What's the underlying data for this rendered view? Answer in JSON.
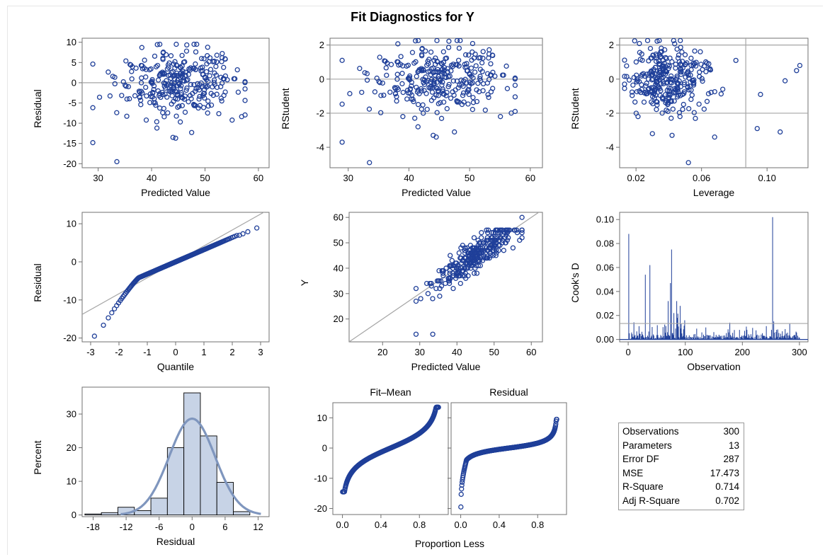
{
  "title": "Fit Diagnostics for Y",
  "colors": {
    "marker": "#1f3f99",
    "reference_line": "#a6a6a6",
    "histogram_fill": "#c7d3e6",
    "density_curve": "#7f96be",
    "axis": "#707070"
  },
  "stats_table": [
    {
      "label": "Observations",
      "value": "300"
    },
    {
      "label": "Parameters",
      "value": "13"
    },
    {
      "label": "Error DF",
      "value": "287"
    },
    {
      "label": "MSE",
      "value": "17.473"
    },
    {
      "label": "R-Square",
      "value": "0.714"
    },
    {
      "label": "Adj R-Square",
      "value": "0.702"
    }
  ],
  "chart_data": [
    {
      "id": "resid-vs-pred",
      "type": "scatter",
      "xlabel": "Predicted Value",
      "ylabel": "Residual",
      "xlim": [
        27,
        62
      ],
      "ylim": [
        -21,
        11
      ],
      "xticks": [
        30,
        40,
        50,
        60
      ],
      "yticks": [
        10,
        5,
        0,
        -5,
        -10,
        -15,
        -20
      ],
      "ref_lines": {
        "h": [
          0
        ]
      },
      "n_points": 300,
      "outliers": [
        [
          29,
          -14.8
        ],
        [
          33.5,
          -19.5
        ],
        [
          44,
          -13.5
        ],
        [
          44.5,
          -13.7
        ],
        [
          47.5,
          -12.3
        ],
        [
          41,
          -11.2
        ]
      ]
    },
    {
      "id": "rstudent-vs-pred",
      "type": "scatter",
      "xlabel": "Predicted Value",
      "ylabel": "RStudent",
      "xlim": [
        27,
        62
      ],
      "ylim": [
        -5.2,
        2.4
      ],
      "xticks": [
        30,
        40,
        50,
        60
      ],
      "yticks": [
        2,
        0,
        -2,
        -4
      ],
      "ref_lines": {
        "h": [
          2,
          0,
          -2
        ]
      },
      "n_points": 300,
      "outliers": [
        [
          29,
          -3.7
        ],
        [
          33.5,
          -4.9
        ],
        [
          44,
          -3.3
        ],
        [
          44.5,
          -3.4
        ],
        [
          47.5,
          -3.1
        ],
        [
          41.5,
          -2.8
        ]
      ]
    },
    {
      "id": "rstudent-vs-leverage",
      "type": "scatter",
      "xlabel": "Leverage",
      "ylabel": "RStudent",
      "xlim": [
        0.01,
        0.125
      ],
      "ylim": [
        -5.2,
        2.4
      ],
      "xticks": [
        0.02,
        0.06,
        0.1
      ],
      "xticklabels": [
        "0.02",
        "0.06",
        "0.10"
      ],
      "yticks": [
        2,
        0,
        -2,
        -4
      ],
      "ref_lines": {
        "h": [
          2,
          -2
        ],
        "v": [
          0.087
        ]
      },
      "n_points": 300,
      "outliers": [
        [
          0.052,
          -4.9
        ],
        [
          0.03,
          -3.2
        ],
        [
          0.042,
          -3.3
        ],
        [
          0.068,
          -3.4
        ],
        [
          0.094,
          -2.9
        ],
        [
          0.108,
          -3.1
        ],
        [
          0.12,
          0.8
        ],
        [
          0.118,
          0.5
        ],
        [
          0.111,
          -0.1
        ],
        [
          0.096,
          -0.9
        ]
      ]
    },
    {
      "id": "qq-plot",
      "type": "scatter",
      "xlabel": "Quantile",
      "ylabel": "Residual",
      "xlim": [
        -3.3,
        3.3
      ],
      "ylim": [
        -21,
        13
      ],
      "xticks": [
        -3,
        -2,
        -1,
        0,
        1,
        2,
        3
      ],
      "yticks": [
        10,
        0,
        -10,
        -20
      ],
      "ref_line": {
        "slope": 4.18,
        "intercept": 0
      },
      "n_points": 300
    },
    {
      "id": "y-vs-pred",
      "type": "scatter",
      "xlabel": "Predicted Value",
      "ylabel": "Y",
      "xlim": [
        11,
        63
      ],
      "ylim": [
        11,
        62
      ],
      "xticks": [
        20,
        30,
        40,
        50,
        60
      ],
      "yticks": [
        60,
        50,
        40,
        30,
        20
      ],
      "ref_line": {
        "slope": 1,
        "intercept": 0
      },
      "n_points": 300,
      "outliers": [
        [
          29,
          14
        ],
        [
          33.5,
          14
        ],
        [
          57.5,
          60
        ]
      ]
    },
    {
      "id": "cooks-d",
      "type": "needle",
      "xlabel": "Observation",
      "ylabel": "Cook's D",
      "xlim": [
        -15,
        315
      ],
      "ylim": [
        -0.002,
        0.106
      ],
      "xticks": [
        0,
        100,
        200,
        300
      ],
      "yticks": [
        0.1,
        0.08,
        0.06,
        0.04,
        0.02,
        0
      ],
      "yticklabels": [
        "0.10",
        "0.08",
        "0.06",
        "0.04",
        "0.02",
        "0.00"
      ],
      "ref_lines": {
        "h": [
          0.0133
        ]
      },
      "n_points": 300,
      "spikes": [
        [
          1,
          0.088
        ],
        [
          30,
          0.054
        ],
        [
          38,
          0.062
        ],
        [
          70,
          0.032
        ],
        [
          74,
          0.047
        ],
        [
          76,
          0.075
        ],
        [
          80,
          0.022
        ],
        [
          86,
          0.018
        ],
        [
          91,
          0.028
        ],
        [
          99,
          0.016
        ],
        [
          178,
          0.014
        ],
        [
          208,
          0.008
        ],
        [
          253,
          0.102
        ],
        [
          255,
          0.015
        ],
        [
          283,
          0.013
        ]
      ]
    },
    {
      "id": "residual-histogram",
      "type": "bar",
      "xlabel": "Residual",
      "ylabel": "Percent",
      "xlim": [
        -20,
        14
      ],
      "ylim": [
        -0.5,
        38
      ],
      "xticks": [
        -18,
        -12,
        -6,
        0,
        6,
        12
      ],
      "yticks": [
        30,
        20,
        10,
        0
      ],
      "bin_edges": [
        -19.5,
        -16.5,
        -13.5,
        -10.5,
        -7.5,
        -4.5,
        -1.5,
        1.5,
        4.5,
        7.5,
        10.5
      ],
      "percents": [
        0.3,
        0.7,
        2.3,
        1.3,
        5,
        20,
        36.3,
        23.5,
        9.7,
        1
      ],
      "normal_curve": {
        "mean": 0,
        "sd": 4.18
      }
    },
    {
      "id": "fit-mean-spread",
      "type": "scatter",
      "title": "Fit–Mean",
      "xlabel": "Proportion Less",
      "ylabel": "",
      "xlim": [
        -0.1,
        1.1
      ],
      "ylim": [
        -22,
        15
      ],
      "xticks": [
        0,
        0.4,
        0.8
      ],
      "xticklabels": [
        "0.0",
        "0.4",
        "0.8"
      ],
      "yticks": [
        10,
        0,
        -10,
        -20
      ],
      "n_points": 300
    },
    {
      "id": "residual-spread",
      "type": "scatter",
      "title": "Residual",
      "xlabel": "Proportion Less",
      "ylabel": "",
      "xlim": [
        -0.1,
        1.1
      ],
      "ylim": [
        -22,
        15
      ],
      "xticks": [
        0,
        0.4,
        0.8
      ],
      "xticklabels": [
        "0.0",
        "0.4",
        "0.8"
      ],
      "yticks": [
        10,
        0,
        -10,
        -20
      ],
      "n_points": 300
    }
  ]
}
